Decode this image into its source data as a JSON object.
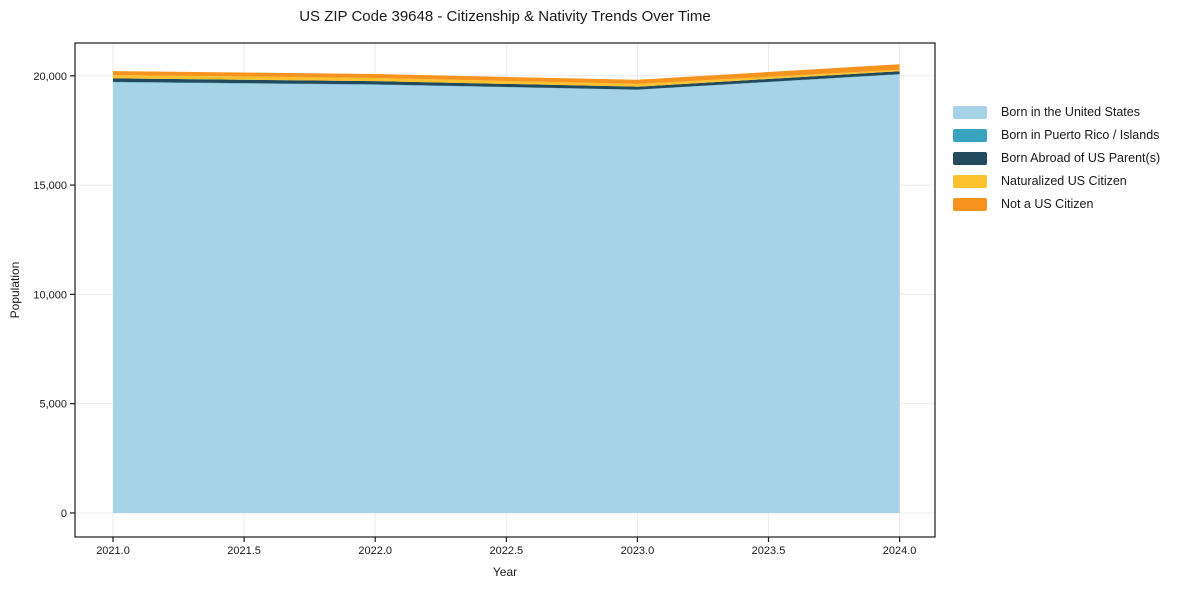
{
  "chart_data": {
    "type": "area",
    "stacked": true,
    "title": "US ZIP Code 39648 - Citizenship & Nativity Trends Over Time",
    "xlabel": "Year",
    "ylabel": "Population",
    "x": [
      2021,
      2022,
      2023,
      2024
    ],
    "series": [
      {
        "name": "Born in the United States",
        "color": "#a7d3e9",
        "values": [
          19700,
          19590,
          19360,
          20060
        ]
      },
      {
        "name": "Born in Puerto Rico / Islands",
        "color": "#39a4c0",
        "values": [
          20,
          15,
          10,
          15
        ]
      },
      {
        "name": "Born Abroad of US Parent(s)",
        "color": "#22495c",
        "values": [
          160,
          150,
          130,
          135
        ]
      },
      {
        "name": "Naturalized US Citizen",
        "color": "#fcc22e",
        "values": [
          150,
          145,
          130,
          70
        ]
      },
      {
        "name": "Not a US Citizen",
        "color": "#f7941f",
        "values": [
          185,
          180,
          185,
          250
        ]
      }
    ],
    "xlim": [
      2020.855,
      2024.135
    ],
    "ylim": [
      -1100,
      21500
    ],
    "xticks": [
      2021.0,
      2021.5,
      2022.0,
      2022.5,
      2023.0,
      2023.5,
      2024.0
    ],
    "xtick_labels": [
      "2021.0",
      "2021.5",
      "2022.0",
      "2022.5",
      "2023.0",
      "2023.5",
      "2024.0"
    ],
    "yticks": [
      0,
      5000,
      10000,
      15000,
      20000
    ],
    "ytick_labels": [
      "0",
      "5,000",
      "10,000",
      "15,000",
      "20,000"
    ],
    "grid": true,
    "legend_position": "outside-right",
    "colors": {
      "grid": "#ececec",
      "spine": "#1a1a1a",
      "text": "#1a1a1a",
      "background": "#ffffff"
    }
  }
}
